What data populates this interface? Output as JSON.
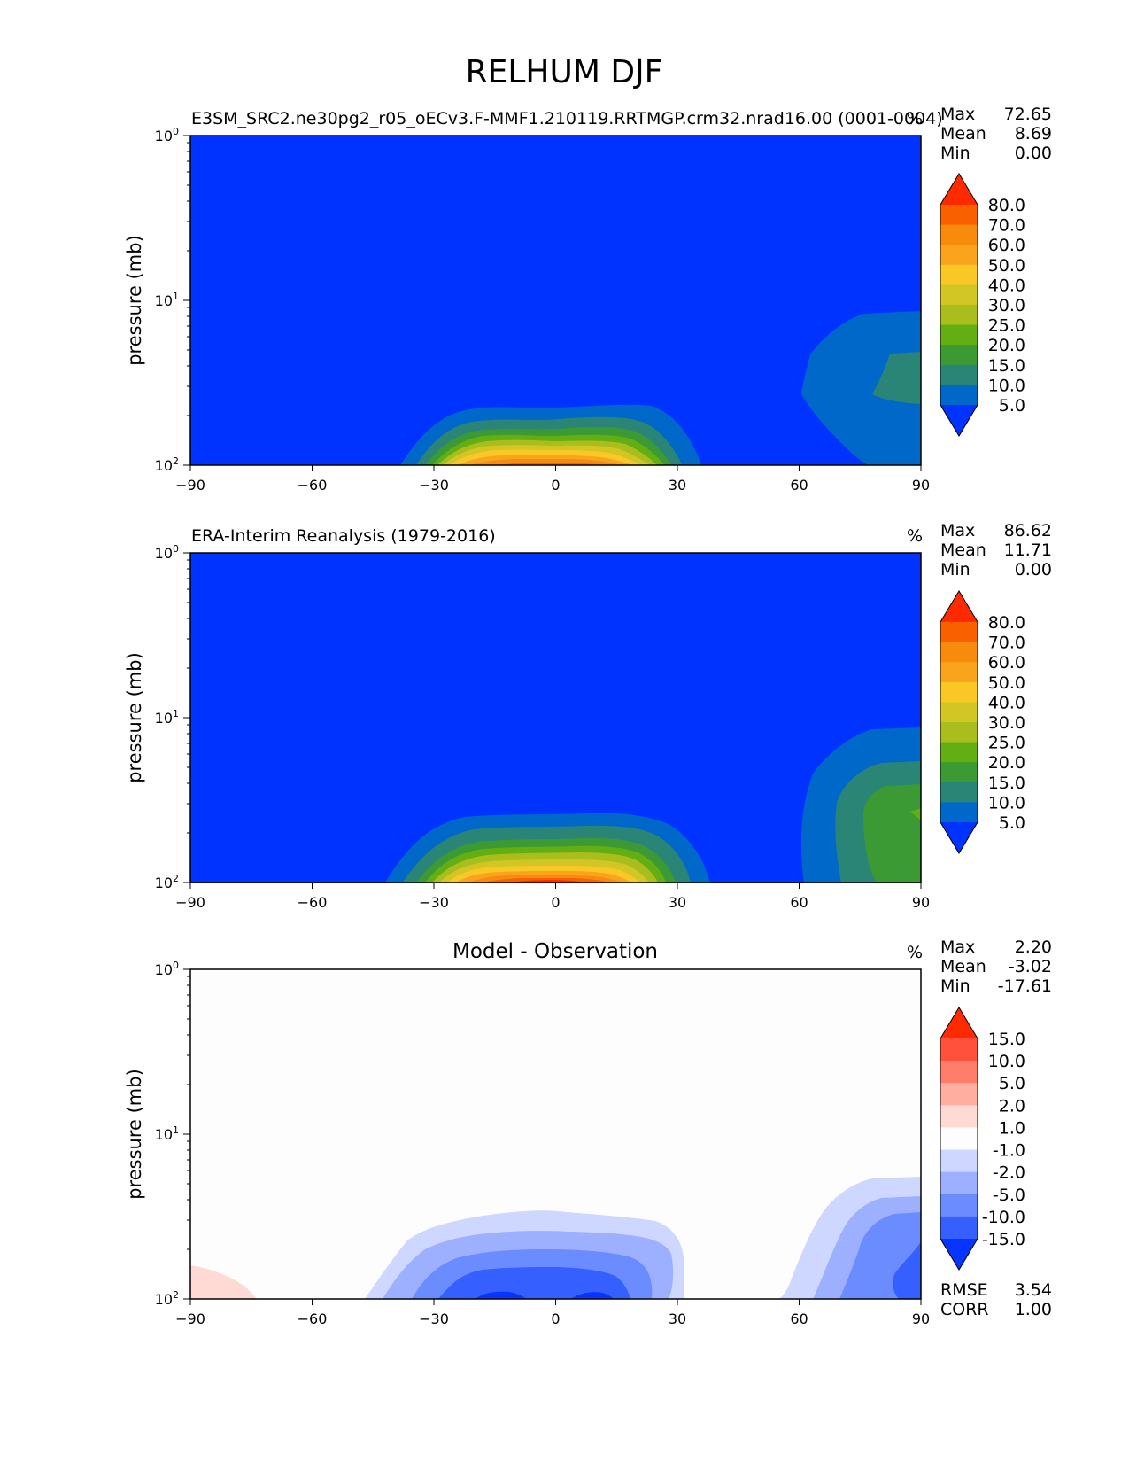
{
  "figure": {
    "title": "RELHUM DJF"
  },
  "chart_data": [
    {
      "type": "contour",
      "name": "test",
      "title": "E3SM_SRC2.ne30pg2_r05_oECv3.F-MMF1.210119.RRTMGP.crm32.nrad16.00 (0001-0004)",
      "units": "%",
      "xlabel": "",
      "ylabel": "pressure (mb)",
      "xlim": [
        -90,
        90
      ],
      "ylim": [
        100,
        1
      ],
      "y_scale": "log",
      "x_ticks": [
        "−90",
        "−60",
        "−30",
        "0",
        "30",
        "60",
        "90"
      ],
      "stats": [
        {
          "label": "Max",
          "value": "72.65"
        },
        {
          "label": "Mean",
          "value": "8.69"
        },
        {
          "label": "Min",
          "value": "0.00"
        }
      ],
      "colorbar": {
        "levels": [
          "5.0",
          "10.0",
          "15.0",
          "20.0",
          "25.0",
          "30.0",
          "40.0",
          "50.0",
          "60.0",
          "70.0",
          "80.0"
        ],
        "colors": [
          "#0033ff",
          "#0068c8",
          "#2a8577",
          "#3c9a35",
          "#62ae13",
          "#a9bd1c",
          "#d2c625",
          "#f9c826",
          "#f9a41c",
          "#f88b0d",
          "#f86000",
          "#ff2a00"
        ]
      },
      "features": [
        {
          "lat": 0,
          "half_width_deg": 38,
          "top_pressure_mb": 45,
          "max_level_index": 10,
          "label": "tropical upper-troposphere maximum"
        },
        {
          "lat": 90,
          "lat_start": 62,
          "top_pressure_mb": 11,
          "max_level_index": 2,
          "label": "north-polar moist region"
        }
      ]
    },
    {
      "type": "contour",
      "name": "reference",
      "title": "ERA-Interim Reanalysis (1979-2016)",
      "units": "%",
      "xlabel": "",
      "ylabel": "pressure (mb)",
      "xlim": [
        -90,
        90
      ],
      "ylim": [
        100,
        1
      ],
      "y_scale": "log",
      "x_ticks": [
        "−90",
        "−60",
        "−30",
        "0",
        "30",
        "60",
        "90"
      ],
      "stats": [
        {
          "label": "Max",
          "value": "86.62"
        },
        {
          "label": "Mean",
          "value": "11.71"
        },
        {
          "label": "Min",
          "value": "0.00"
        }
      ],
      "colorbar": {
        "levels": [
          "5.0",
          "10.0",
          "15.0",
          "20.0",
          "25.0",
          "30.0",
          "40.0",
          "50.0",
          "60.0",
          "70.0",
          "80.0"
        ],
        "colors": [
          "#0033ff",
          "#0068c8",
          "#2a8577",
          "#3c9a35",
          "#62ae13",
          "#a9bd1c",
          "#d2c625",
          "#f9c826",
          "#f9a41c",
          "#f88b0d",
          "#f86000",
          "#ff2a00"
        ]
      },
      "features": [
        {
          "lat": -2,
          "half_width_deg": 41,
          "top_pressure_mb": 37,
          "max_level_index": 11,
          "label": "tropical upper-troposphere maximum"
        },
        {
          "lat": 90,
          "lat_start": 60,
          "top_pressure_mb": 11,
          "max_level_index": 3,
          "label": "north-polar moist region"
        }
      ]
    },
    {
      "type": "contour",
      "name": "diff",
      "title": "Model - Observation",
      "units": "%",
      "xlabel": "",
      "ylabel": "pressure (mb)",
      "xlim": [
        -90,
        90
      ],
      "ylim": [
        100,
        1
      ],
      "y_scale": "log",
      "x_ticks": [
        "−90",
        "−60",
        "−30",
        "0",
        "30",
        "60",
        "90"
      ],
      "stats": [
        {
          "label": "Max",
          "value": "2.20"
        },
        {
          "label": "Mean",
          "value": "-3.02"
        },
        {
          "label": "Min",
          "value": "-17.61"
        }
      ],
      "extra_stats": [
        {
          "label": "RMSE",
          "value": "3.54"
        },
        {
          "label": "CORR",
          "value": "1.00"
        }
      ],
      "colorbar": {
        "levels": [
          "-15.0",
          "-10.0",
          "-5.0",
          "-2.0",
          "-1.0",
          "1.0",
          "2.0",
          "5.0",
          "10.0",
          "15.0"
        ],
        "colors": [
          "#0535ff",
          "#3560ff",
          "#6a8cff",
          "#9dafff",
          "#cdd7ff",
          "#fdfdfd",
          "#ffd9d3",
          "#ffaea0",
          "#ff7e6a",
          "#ff513b",
          "#ff2a00"
        ]
      },
      "features": [
        {
          "lat": 0,
          "half_width_deg": 36,
          "top_pressure_mb": 28,
          "min_value": -17.61,
          "label": "tropical dry bias"
        },
        {
          "lat": 90,
          "lat_start": 55,
          "top_pressure_mb": 18,
          "min_value": -15,
          "label": "north-polar dry bias"
        },
        {
          "lat": -90,
          "lat_end": -75,
          "top_pressure_mb": 85,
          "max_value": 2.2,
          "label": "south-polar moist bias"
        }
      ]
    }
  ]
}
